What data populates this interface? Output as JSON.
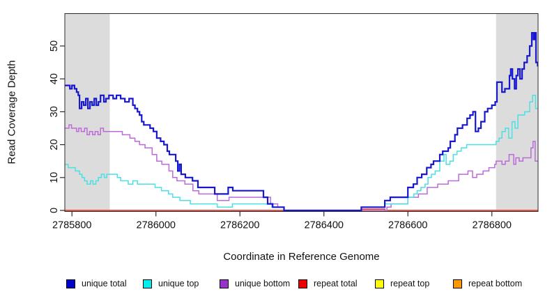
{
  "figure": {
    "background": "#ffffff",
    "x_axis_title": "Coordinate in Reference Genome",
    "y_axis_title": "Read Coverage Depth"
  },
  "chart_data": {
    "type": "line",
    "subtype": "step-after",
    "title": "",
    "xlabel": "Coordinate in Reference Genome",
    "ylabel": "Read Coverage Depth",
    "xlim": [
      2785783,
      2786910
    ],
    "ylim": [
      0,
      60
    ],
    "x_ticks": [
      2785800,
      2786000,
      2786200,
      2786400,
      2786600,
      2786800
    ],
    "x_tick_labels": [
      "2785800",
      "2786000",
      "2786200",
      "2786400",
      "2786600",
      "2786800"
    ],
    "y_ticks": [
      0,
      10,
      20,
      30,
      40,
      50
    ],
    "y_tick_labels": [
      "0",
      "10",
      "20",
      "30",
      "40",
      "50"
    ],
    "grid": false,
    "legend_position": "bottom",
    "axis_color": "#2b2b2b",
    "shaded_regions": [
      {
        "x0": 2785783,
        "x1": 2785890,
        "color": "#dcdcdc"
      },
      {
        "x0": 2786810,
        "x1": 2786910,
        "color": "#dcdcdc"
      }
    ],
    "series": [
      {
        "name": "unique total",
        "slug": "unique-total",
        "legend_color": "#0000cc",
        "line_color": "#1717d0",
        "line_width": 2.2,
        "z": 6,
        "points": [
          [
            2785783,
            38
          ],
          [
            2785795,
            37
          ],
          [
            2785800,
            38
          ],
          [
            2785806,
            37
          ],
          [
            2785811,
            36
          ],
          [
            2785815,
            35
          ],
          [
            2785818,
            31
          ],
          [
            2785823,
            33
          ],
          [
            2785828,
            32
          ],
          [
            2785833,
            34
          ],
          [
            2785838,
            31
          ],
          [
            2785843,
            33
          ],
          [
            2785848,
            32
          ],
          [
            2785853,
            34
          ],
          [
            2785858,
            32
          ],
          [
            2785863,
            33
          ],
          [
            2785868,
            35
          ],
          [
            2785876,
            33
          ],
          [
            2785881,
            34
          ],
          [
            2785888,
            35
          ],
          [
            2785898,
            34
          ],
          [
            2785906,
            35
          ],
          [
            2785916,
            34
          ],
          [
            2785926,
            33
          ],
          [
            2785936,
            34
          ],
          [
            2785945,
            32
          ],
          [
            2785950,
            31
          ],
          [
            2785956,
            30
          ],
          [
            2785961,
            29
          ],
          [
            2785966,
            27
          ],
          [
            2785971,
            26
          ],
          [
            2785986,
            25
          ],
          [
            2785994,
            24
          ],
          [
            2786002,
            22
          ],
          [
            2786011,
            21
          ],
          [
            2786019,
            20
          ],
          [
            2786027,
            18
          ],
          [
            2786032,
            17
          ],
          [
            2786047,
            15
          ],
          [
            2786052,
            12
          ],
          [
            2786056,
            14
          ],
          [
            2786060,
            11
          ],
          [
            2786070,
            10
          ],
          [
            2786087,
            9
          ],
          [
            2786100,
            7
          ],
          [
            2786140,
            5
          ],
          [
            2786172,
            7
          ],
          [
            2786183,
            6
          ],
          [
            2786256,
            4
          ],
          [
            2786266,
            2
          ],
          [
            2786278,
            1
          ],
          [
            2786305,
            0
          ],
          [
            2786489,
            1
          ],
          [
            2786545,
            3
          ],
          [
            2786558,
            4
          ],
          [
            2786600,
            7
          ],
          [
            2786613,
            8
          ],
          [
            2786622,
            10
          ],
          [
            2786633,
            11
          ],
          [
            2786645,
            13
          ],
          [
            2786655,
            14
          ],
          [
            2786661,
            15
          ],
          [
            2786676,
            17
          ],
          [
            2786683,
            18
          ],
          [
            2786696,
            19
          ],
          [
            2786701,
            21
          ],
          [
            2786712,
            23
          ],
          [
            2786718,
            25
          ],
          [
            2786730,
            26
          ],
          [
            2786741,
            28
          ],
          [
            2786748,
            29
          ],
          [
            2786755,
            30
          ],
          [
            2786761,
            24
          ],
          [
            2786768,
            25
          ],
          [
            2786774,
            27
          ],
          [
            2786783,
            30
          ],
          [
            2786790,
            31
          ],
          [
            2786800,
            32
          ],
          [
            2786808,
            33
          ],
          [
            2786812,
            39
          ],
          [
            2786824,
            36
          ],
          [
            2786831,
            37
          ],
          [
            2786842,
            41
          ],
          [
            2786845,
            43
          ],
          [
            2786849,
            40
          ],
          [
            2786854,
            37
          ],
          [
            2786858,
            41
          ],
          [
            2786862,
            43
          ],
          [
            2786867,
            40
          ],
          [
            2786872,
            43
          ],
          [
            2786877,
            45
          ],
          [
            2786884,
            47
          ],
          [
            2786890,
            50
          ],
          [
            2786895,
            54
          ],
          [
            2786899,
            52
          ],
          [
            2786902,
            54
          ],
          [
            2786905,
            45
          ],
          [
            2786909,
            44
          ]
        ]
      },
      {
        "name": "unique top",
        "slug": "unique-top",
        "legend_color": "#00eeee",
        "line_color": "#4ae0e4",
        "line_width": 1.5,
        "z": 5,
        "points": [
          [
            2785783,
            14
          ],
          [
            2785791,
            13
          ],
          [
            2785808,
            12
          ],
          [
            2785818,
            11
          ],
          [
            2785824,
            10
          ],
          [
            2785830,
            9
          ],
          [
            2785836,
            8
          ],
          [
            2785844,
            9
          ],
          [
            2785850,
            8
          ],
          [
            2785857,
            9
          ],
          [
            2785863,
            10
          ],
          [
            2785870,
            11
          ],
          [
            2785877,
            10
          ],
          [
            2785883,
            11
          ],
          [
            2785908,
            10
          ],
          [
            2785916,
            9
          ],
          [
            2785934,
            8
          ],
          [
            2785945,
            9
          ],
          [
            2785956,
            8
          ],
          [
            2785998,
            7
          ],
          [
            2786013,
            6
          ],
          [
            2786030,
            5
          ],
          [
            2786040,
            4
          ],
          [
            2786057,
            3
          ],
          [
            2786082,
            2
          ],
          [
            2786146,
            1
          ],
          [
            2786182,
            2
          ],
          [
            2786276,
            1
          ],
          [
            2786305,
            0
          ],
          [
            2786489,
            1
          ],
          [
            2786545,
            2
          ],
          [
            2786600,
            4
          ],
          [
            2786614,
            5
          ],
          [
            2786622,
            6
          ],
          [
            2786631,
            7
          ],
          [
            2786641,
            8
          ],
          [
            2786648,
            10
          ],
          [
            2786656,
            11
          ],
          [
            2786665,
            12
          ],
          [
            2786676,
            15
          ],
          [
            2786686,
            17
          ],
          [
            2786691,
            14
          ],
          [
            2786700,
            15
          ],
          [
            2786708,
            17
          ],
          [
            2786717,
            18
          ],
          [
            2786727,
            19
          ],
          [
            2786740,
            20
          ],
          [
            2786810,
            21
          ],
          [
            2786817,
            22
          ],
          [
            2786824,
            24
          ],
          [
            2786832,
            25
          ],
          [
            2786840,
            22
          ],
          [
            2786848,
            27
          ],
          [
            2786855,
            25
          ],
          [
            2786862,
            29
          ],
          [
            2786878,
            30
          ],
          [
            2786890,
            33
          ],
          [
            2786897,
            35
          ],
          [
            2786904,
            31
          ]
        ]
      },
      {
        "name": "unique bottom",
        "slug": "unique-bottom",
        "legend_color": "#9932cc",
        "line_color": "#bb6ad8",
        "line_width": 1.5,
        "z": 4,
        "points": [
          [
            2785783,
            25
          ],
          [
            2785793,
            26
          ],
          [
            2785799,
            25
          ],
          [
            2785811,
            24
          ],
          [
            2785816,
            25
          ],
          [
            2785822,
            24
          ],
          [
            2785830,
            25
          ],
          [
            2785836,
            23
          ],
          [
            2785842,
            24
          ],
          [
            2785849,
            23
          ],
          [
            2785855,
            24
          ],
          [
            2785862,
            23
          ],
          [
            2785868,
            25
          ],
          [
            2785875,
            24
          ],
          [
            2785889,
            24
          ],
          [
            2785903,
            24
          ],
          [
            2785920,
            23
          ],
          [
            2785938,
            22
          ],
          [
            2785950,
            21
          ],
          [
            2785961,
            20
          ],
          [
            2785974,
            19
          ],
          [
            2785991,
            17
          ],
          [
            2786002,
            15
          ],
          [
            2786014,
            14
          ],
          [
            2786031,
            12
          ],
          [
            2786040,
            10
          ],
          [
            2786050,
            9
          ],
          [
            2786069,
            8
          ],
          [
            2786088,
            6
          ],
          [
            2786102,
            5
          ],
          [
            2786146,
            3
          ],
          [
            2786174,
            4
          ],
          [
            2786273,
            2
          ],
          [
            2786290,
            1
          ],
          [
            2786305,
            0
          ],
          [
            2786550,
            1
          ],
          [
            2786560,
            2
          ],
          [
            2786600,
            4
          ],
          [
            2786625,
            5
          ],
          [
            2786646,
            7
          ],
          [
            2786671,
            8
          ],
          [
            2786696,
            9
          ],
          [
            2786721,
            11
          ],
          [
            2786743,
            12
          ],
          [
            2786754,
            10
          ],
          [
            2786764,
            11
          ],
          [
            2786779,
            12
          ],
          [
            2786793,
            13
          ],
          [
            2786807,
            14
          ],
          [
            2786810,
            15
          ],
          [
            2786824,
            14
          ],
          [
            2786832,
            15
          ],
          [
            2786841,
            17
          ],
          [
            2786852,
            14
          ],
          [
            2786857,
            16
          ],
          [
            2786865,
            15
          ],
          [
            2786874,
            16
          ],
          [
            2786893,
            19
          ],
          [
            2786898,
            21
          ],
          [
            2786903,
            15
          ]
        ]
      },
      {
        "name": "repeat total",
        "slug": "repeat-total",
        "legend_color": "#ee0000",
        "line_color": "#e03355",
        "line_width": 1.5,
        "z": 3,
        "points": [
          [
            2785783,
            0
          ],
          [
            2786489,
            0.4
          ],
          [
            2786545,
            0
          ]
        ]
      },
      {
        "name": "repeat top",
        "slug": "repeat-top",
        "legend_color": "#ffff00",
        "line_color": "#ffff00",
        "line_width": 1.5,
        "z": 1,
        "points": [
          [
            2785783,
            0
          ]
        ]
      },
      {
        "name": "repeat bottom",
        "slug": "repeat-bottom",
        "legend_color": "#ff9900",
        "line_color": "#ffa500",
        "line_width": 1.7,
        "z": 2,
        "points": [
          [
            2785783,
            0
          ]
        ]
      }
    ]
  }
}
